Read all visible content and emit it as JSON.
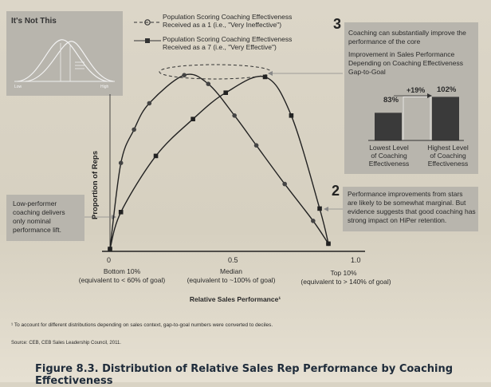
{
  "inset": {
    "title": "It's Not This",
    "low_label": "Low",
    "high_label": "High"
  },
  "legend": [
    {
      "line1": "Population Scoring Coaching Effectiveness",
      "line2": "Received as a 1 (i.e., \"Very Ineffective\")"
    },
    {
      "line1": "Population Scoring Coaching Effectiveness",
      "line2": "Received as a 7 (i.e., \"Very Effective\")"
    }
  ],
  "callout3": {
    "number": "3",
    "lines": [
      "Coaching can substantially improve the",
      "performance of the core",
      "Improvement in Sales Performance",
      "Depending on Coaching Effectiveness",
      "Gap-to-Goal"
    ]
  },
  "mini_bar": {
    "low_value": "83%",
    "high_value": "102%",
    "delta": "+19%",
    "low_label": [
      "Lowest Level",
      "of Coaching",
      "Effectiveness"
    ],
    "high_label": [
      "Highest Level",
      "of Coaching",
      "Effectiveness"
    ]
  },
  "callout2": {
    "number": "2",
    "lines": [
      "Performance improvements from stars",
      "are likely to be somewhat marginal. But",
      "evidence suggests that good coaching has",
      "strong impact on HiPer retention."
    ]
  },
  "callout_left": {
    "lines": [
      "Low-performer",
      "coaching delivers",
      "only nominal",
      "performance lift."
    ]
  },
  "axis": {
    "ylabel": "Proportion of Reps",
    "xlabel": "Relative Sales Performance¹",
    "ticks": [
      {
        "value": "0",
        "line1": "Bottom 10%",
        "line2": "(equivalent to < 60% of goal)"
      },
      {
        "value": "0.5",
        "line1": "Median",
        "line2": "(equivalent to ~100% of goal)"
      },
      {
        "value": "1.0",
        "line1": "Top 10%",
        "line2": "(equivalent to > 140% of goal)"
      }
    ]
  },
  "footnote": "¹ To account for different distributions depending on sales context, gap-to-goal numbers were converted to deciles.",
  "source": "Source: CEB, CEB Sales Leadership Council, 2011.",
  "caption": "Figure 8.3. Distribution of Relative Sales Rep Performance by Coaching Effectiveness",
  "chart_data": {
    "type": "line",
    "xlabel": "Relative Sales Performance¹",
    "ylabel": "Proportion of Reps",
    "xlim": [
      0,
      1
    ],
    "ylim": [
      0,
      1
    ],
    "grid": false,
    "legend_position": "top",
    "series": [
      {
        "name": "Population Scoring Coaching Effectiveness Received as a 1 (i.e., \"Very Ineffective\")",
        "marker": "circle",
        "x": [
          0,
          0.05,
          0.11,
          0.18,
          0.34,
          0.45,
          0.57,
          0.67,
          0.8,
          0.93,
          1.0
        ],
        "y": [
          0,
          0.49,
          0.68,
          0.83,
          0.99,
          0.94,
          0.76,
          0.59,
          0.37,
          0.16,
          0.03
        ]
      },
      {
        "name": "Population Scoring Coaching Effectiveness Received as a 7 (i.e., \"Very Effective\")",
        "marker": "square",
        "x": [
          0,
          0.05,
          0.21,
          0.38,
          0.53,
          0.71,
          0.83,
          0.96,
          1.0
        ],
        "y": [
          0,
          0.21,
          0.53,
          0.74,
          0.89,
          0.98,
          0.76,
          0.23,
          0.03
        ]
      }
    ],
    "mini_bar": {
      "type": "bar",
      "categories": [
        "Lowest Level of Coaching Effectiveness",
        "Highest Level of Coaching Effectiveness"
      ],
      "values": [
        83,
        102
      ],
      "unit": "%"
    }
  }
}
